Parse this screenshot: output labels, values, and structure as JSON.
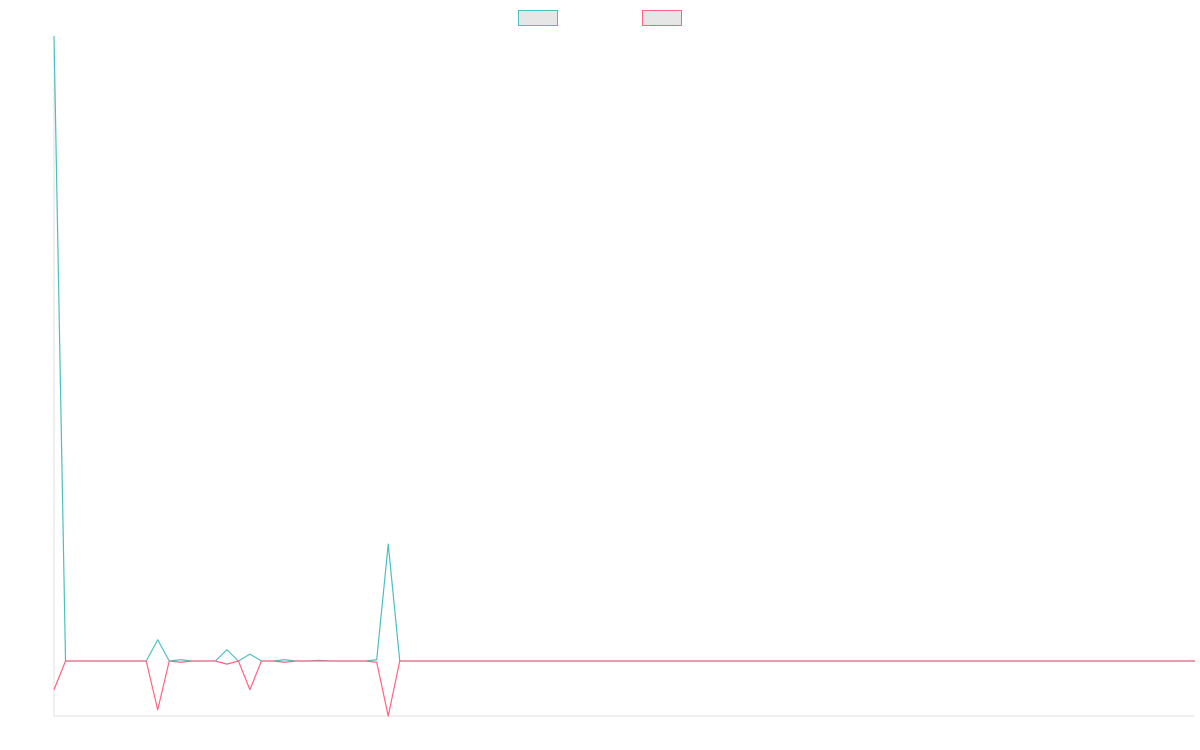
{
  "chart_data": {
    "type": "line",
    "categories": [
      null,
      null,
      null,
      null,
      null,
      null,
      null,
      null,
      null,
      null,
      null,
      null,
      null,
      null,
      null,
      null,
      null,
      null,
      null,
      null,
      null,
      null,
      null,
      null,
      null,
      null,
      null,
      null,
      null,
      null,
      null,
      null,
      null,
      null,
      null,
      null,
      null,
      null,
      null,
      null,
      null,
      null,
      null,
      null,
      null,
      null,
      null,
      null,
      null,
      null,
      null,
      null,
      null,
      null,
      null,
      null,
      null,
      null,
      null,
      null,
      null,
      null,
      null,
      null,
      null,
      null,
      null,
      null,
      null,
      null,
      null,
      null,
      null,
      null,
      null,
      null,
      null,
      null,
      null,
      null,
      null,
      null,
      null,
      null,
      null,
      null,
      null,
      null,
      null,
      null,
      null,
      null,
      null,
      null,
      null,
      null,
      null,
      null,
      null,
      null
    ],
    "series": [
      {
        "color": "#4bc0c0",
        "fill": "#e6e6e6",
        "values": [
          10,
          0,
          0,
          0,
          0,
          0,
          0,
          0,
          0,
          0.34,
          0,
          0.02,
          0,
          0,
          0,
          0.18,
          0,
          0.11,
          0,
          0,
          0.02,
          0,
          0,
          0.01,
          0,
          0,
          0,
          0,
          0.02,
          1.87,
          0,
          0,
          0,
          0,
          0,
          0,
          0,
          0,
          0,
          0,
          0,
          0,
          0,
          0,
          0,
          0,
          0,
          0,
          0,
          0,
          0,
          0,
          0,
          0,
          0,
          0,
          0,
          0,
          0,
          0,
          0,
          0,
          0,
          0,
          0,
          0,
          0,
          0,
          0,
          0,
          0,
          0,
          0,
          0,
          0,
          0,
          0,
          0,
          0,
          0,
          0,
          0,
          0,
          0,
          0,
          0,
          0,
          0,
          0,
          0,
          0,
          0,
          0,
          0,
          0,
          0,
          0,
          0,
          0,
          0
        ]
      },
      {
        "color": "#ff6384",
        "fill": "#e6e6e6",
        "values": [
          -0.46,
          0,
          0,
          0,
          0,
          0,
          0,
          0,
          0,
          -0.78,
          0,
          -0.02,
          0,
          0,
          0,
          -0.05,
          0,
          -0.46,
          0,
          0,
          -0.02,
          0,
          0,
          0,
          0,
          0,
          0,
          0,
          -0.02,
          -0.88,
          0,
          0,
          0,
          0,
          0,
          0,
          0,
          0,
          0,
          0,
          0,
          0,
          0,
          0,
          0,
          0,
          0,
          0,
          0,
          0,
          0,
          0,
          0,
          0,
          0,
          0,
          0,
          0,
          0,
          0,
          0,
          0,
          0,
          0,
          0,
          0,
          0,
          0,
          0,
          0,
          0,
          0,
          0,
          0,
          0,
          0,
          0,
          0,
          0,
          0,
          0,
          0,
          0,
          0,
          0,
          0,
          0,
          0,
          0,
          0,
          0,
          0,
          0,
          0,
          0,
          0,
          0,
          0,
          0,
          0
        ]
      }
    ],
    "ylim": [
      -0.88,
      10
    ],
    "legend": "top"
  }
}
